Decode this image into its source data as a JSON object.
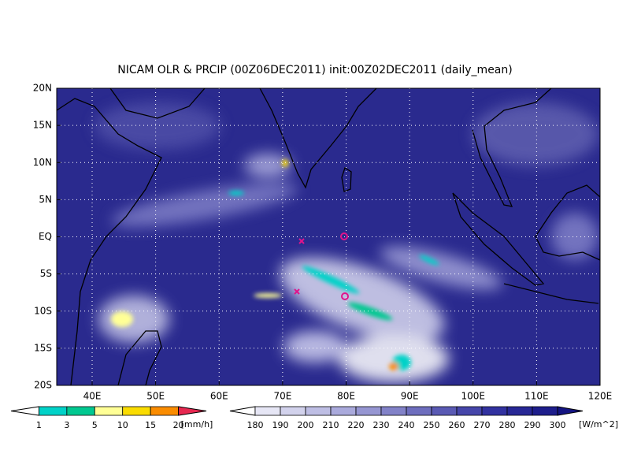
{
  "title": "NICAM OLR & PRCIP (00Z06DEC2011) init:00Z02DEC2011 (daily_mean)",
  "map": {
    "lat_labels": [
      "20N",
      "15N",
      "10N",
      "5N",
      "EQ",
      "5S",
      "10S",
      "15S",
      "20S"
    ],
    "lon_labels": [
      "40E",
      "50E",
      "60E",
      "70E",
      "80E",
      "90E",
      "100E",
      "110E",
      "120E"
    ]
  },
  "precip_colorbar": {
    "levels": [
      1,
      3,
      5,
      10,
      15,
      20
    ],
    "unit": "[mm/h]",
    "colors": [
      "#ffffff",
      "#00d2c8",
      "#00c890",
      "#ffff96",
      "#fadc00",
      "#fa8c00",
      "#e62850"
    ]
  },
  "olr_colorbar": {
    "levels": [
      180,
      190,
      200,
      210,
      220,
      230,
      240,
      250,
      260,
      270,
      280,
      290,
      300
    ],
    "unit": "[W/m^2]",
    "colors": [
      "#ffffff",
      "#e6e6f5",
      "#d2d2ec",
      "#bebee4",
      "#aaaadc",
      "#9696d2",
      "#8282c8",
      "#6e6ebe",
      "#5a5ab4",
      "#4646aa",
      "#3232a0",
      "#282896",
      "#1e1e8c",
      "#141482"
    ]
  }
}
